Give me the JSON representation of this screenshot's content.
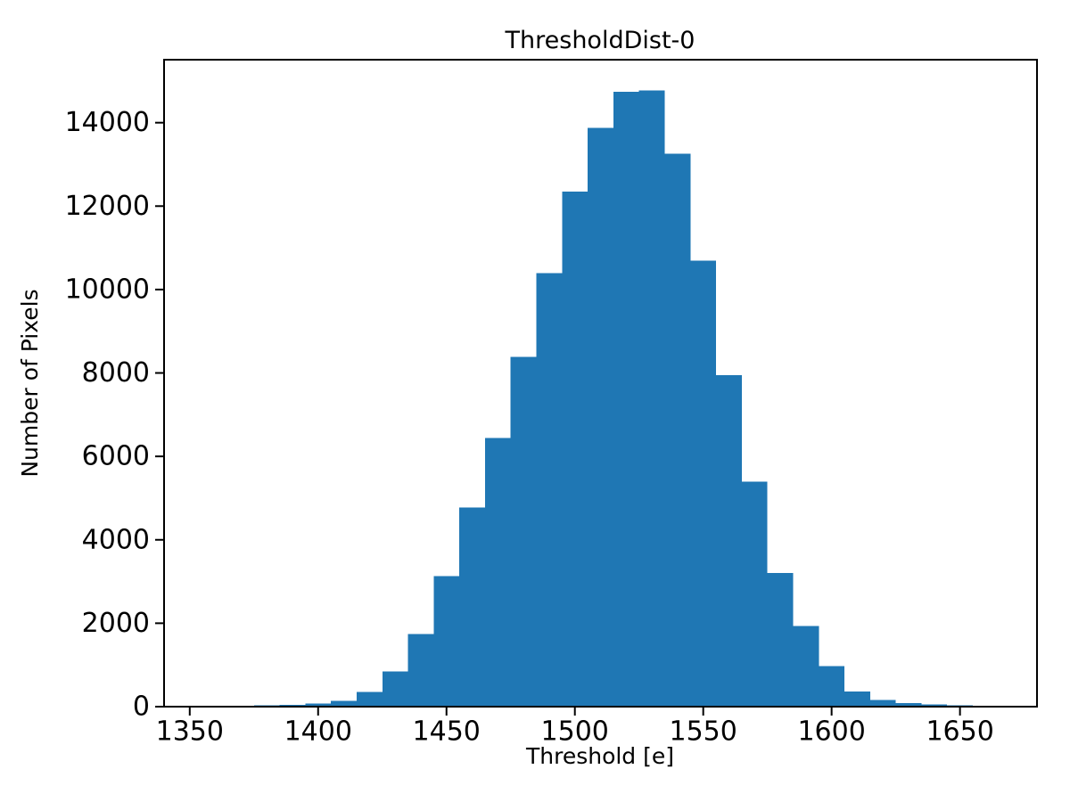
{
  "figure": {
    "background_color": "#ffffff",
    "text_color": "#000000"
  },
  "chart_data": {
    "type": "bar",
    "subtype": "histogram",
    "title": "ThresholdDist-0",
    "xlabel": "Threshold [e]",
    "ylabel": "Number of Pixels",
    "bar_color": "#1f77b4",
    "bin_start": 1355,
    "bin_width": 10,
    "counts": [
      20,
      25,
      30,
      45,
      75,
      140,
      350,
      840,
      1740,
      3130,
      4770,
      6440,
      8380,
      10390,
      12350,
      13880,
      14740,
      14770,
      13260,
      10690,
      7950,
      5390,
      3200,
      1935,
      975,
      360,
      160,
      85,
      55,
      30,
      25
    ],
    "xlim": [
      1340,
      1680
    ],
    "ylim": [
      0,
      15510
    ],
    "xticks": [
      1350,
      1400,
      1450,
      1500,
      1550,
      1600,
      1650
    ],
    "yticks": [
      0,
      2000,
      4000,
      6000,
      8000,
      10000,
      12000,
      14000
    ],
    "grid": false,
    "legend_position": "none"
  }
}
